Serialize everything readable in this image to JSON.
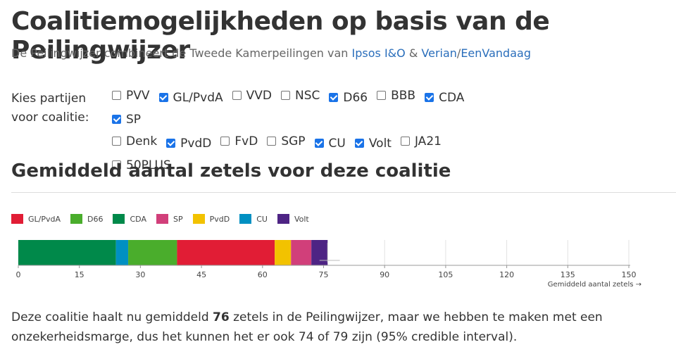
{
  "header": {
    "title": "Coalitiemogelijkheden op basis van de Peilingwijzer",
    "subtitle_pre": "De Peilingwijzer combineert de Tweede Kamerpeilingen van ",
    "link_ipsos": "Ipsos I&O",
    "amp": " & ",
    "link_verian": "Verian",
    "slash": "/",
    "link_eenvandaag": "EenVandaag"
  },
  "party_picker": {
    "label_line1": "Kies partijen",
    "label_line2": "voor coalitie:",
    "parties": [
      {
        "label": "PVV",
        "checked": false
      },
      {
        "label": "GL/PvdA",
        "checked": true
      },
      {
        "label": "VVD",
        "checked": false
      },
      {
        "label": "NSC",
        "checked": false
      },
      {
        "label": "D66",
        "checked": true
      },
      {
        "label": "BBB",
        "checked": false
      },
      {
        "label": "CDA",
        "checked": true
      },
      {
        "label": "SP",
        "checked": true
      },
      {
        "label": "Denk",
        "checked": false
      },
      {
        "label": "PvdD",
        "checked": true
      },
      {
        "label": "FvD",
        "checked": false
      },
      {
        "label": "SGP",
        "checked": false
      },
      {
        "label": "CU",
        "checked": true
      },
      {
        "label": "Volt",
        "checked": true
      },
      {
        "label": "JA21",
        "checked": false
      },
      {
        "label": "50PLUS",
        "checked": false
      }
    ]
  },
  "section_title": "Gemiddeld aantal zetels voor deze coalitie",
  "chart_data": {
    "type": "bar",
    "stacked": true,
    "orientation": "horizontal",
    "xlabel": "Gemiddeld aantal zetels →",
    "xlim": [
      0,
      150
    ],
    "xticks": [
      0,
      15,
      30,
      45,
      60,
      75,
      90,
      105,
      120,
      135,
      150
    ],
    "grid": true,
    "legend_position": "top-left",
    "stack_order": [
      "CDA",
      "CU",
      "D66",
      "GL/PvdA",
      "PvdD",
      "SP",
      "Volt"
    ],
    "series": [
      {
        "name": "GL/PvdA",
        "value": 24,
        "color": "#e11d35"
      },
      {
        "name": "D66",
        "value": 12,
        "color": "#4aad2c"
      },
      {
        "name": "CDA",
        "value": 24,
        "color": "#00894a"
      },
      {
        "name": "SP",
        "value": 5,
        "color": "#d13f7a"
      },
      {
        "name": "PvdD",
        "value": 4,
        "color": "#f2c200"
      },
      {
        "name": "CU",
        "value": 3,
        "color": "#0090c2"
      },
      {
        "name": "Volt",
        "value": 4,
        "color": "#4e2484"
      }
    ],
    "interval": [
      74,
      79
    ]
  },
  "summary": {
    "text_pre": "Deze coalitie haalt nu gemiddeld ",
    "total": "76",
    "text_post": " zetels in de Peilingwijzer, maar we hebben te maken met een onzekerheidsmarge, dus het kunnen het er ook 74 of 79 zijn (95% credible interval)."
  }
}
